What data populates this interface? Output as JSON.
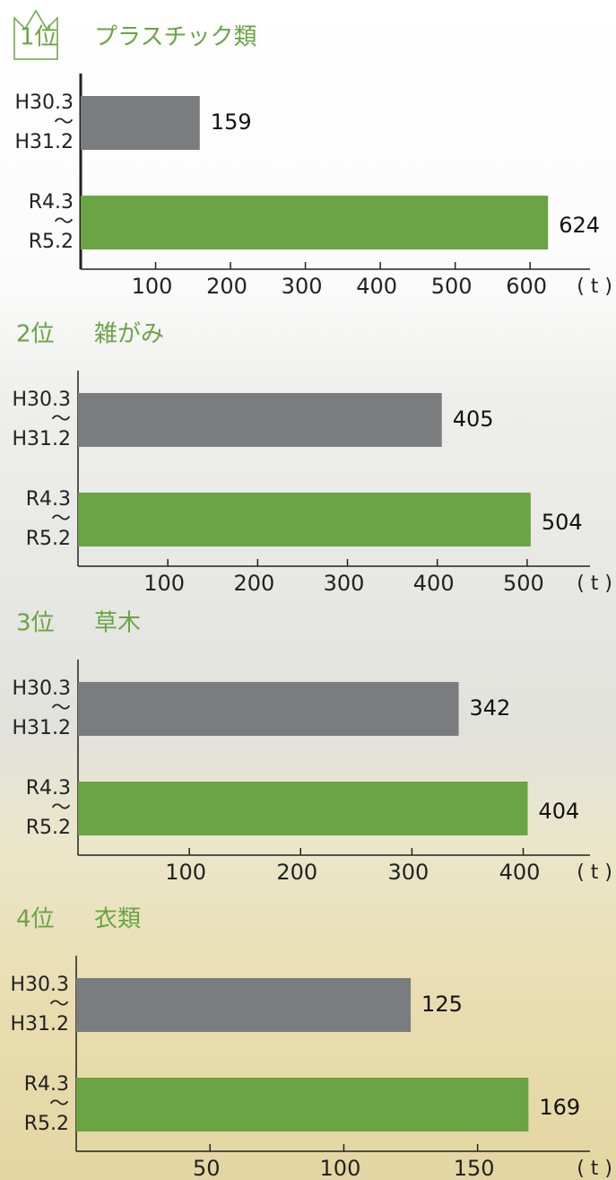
{
  "chart_data": [
    {
      "type": "bar",
      "orientation": "horizontal",
      "rank": "1位",
      "title": "プラスチック類",
      "categories": [
        "H30.3\n〜\nH31.2",
        "R4.3\n〜\nR5.2"
      ],
      "values": [
        159,
        624
      ],
      "colors": [
        "#7b7c7e",
        "#6aa444"
      ],
      "xlim": [
        0,
        680
      ],
      "xticks": [
        100,
        200,
        300,
        400,
        500,
        600
      ],
      "xlabel": "( t )"
    },
    {
      "type": "bar",
      "orientation": "horizontal",
      "rank": "2位",
      "title": "雑がみ",
      "categories": [
        "H30.3\n〜\nH31.2",
        "R4.3\n〜\nR5.2"
      ],
      "values": [
        405,
        504
      ],
      "colors": [
        "#7b7c7e",
        "#6aa444"
      ],
      "xlim": [
        0,
        570
      ],
      "xticks": [
        100,
        200,
        300,
        400,
        500
      ],
      "xlabel": "( t )"
    },
    {
      "type": "bar",
      "orientation": "horizontal",
      "rank": "3位",
      "title": "草木",
      "categories": [
        "H30.3\n〜\nH31.2",
        "R4.3\n〜\nR5.2"
      ],
      "values": [
        342,
        404
      ],
      "colors": [
        "#7b7c7e",
        "#6aa444"
      ],
      "xlim": [
        0,
        460
      ],
      "xticks": [
        100,
        200,
        300,
        400
      ],
      "xlabel": "( t )"
    },
    {
      "type": "bar",
      "orientation": "horizontal",
      "rank": "4位",
      "title": "衣類",
      "categories": [
        "H30.3\n〜\nH31.2",
        "R4.3\n〜\nR5.2"
      ],
      "values": [
        125,
        169
      ],
      "colors": [
        "#7b7c7e",
        "#6aa444"
      ],
      "xlim": [
        0,
        192
      ],
      "xticks": [
        50,
        100,
        150
      ],
      "xlabel": "( t )"
    }
  ]
}
